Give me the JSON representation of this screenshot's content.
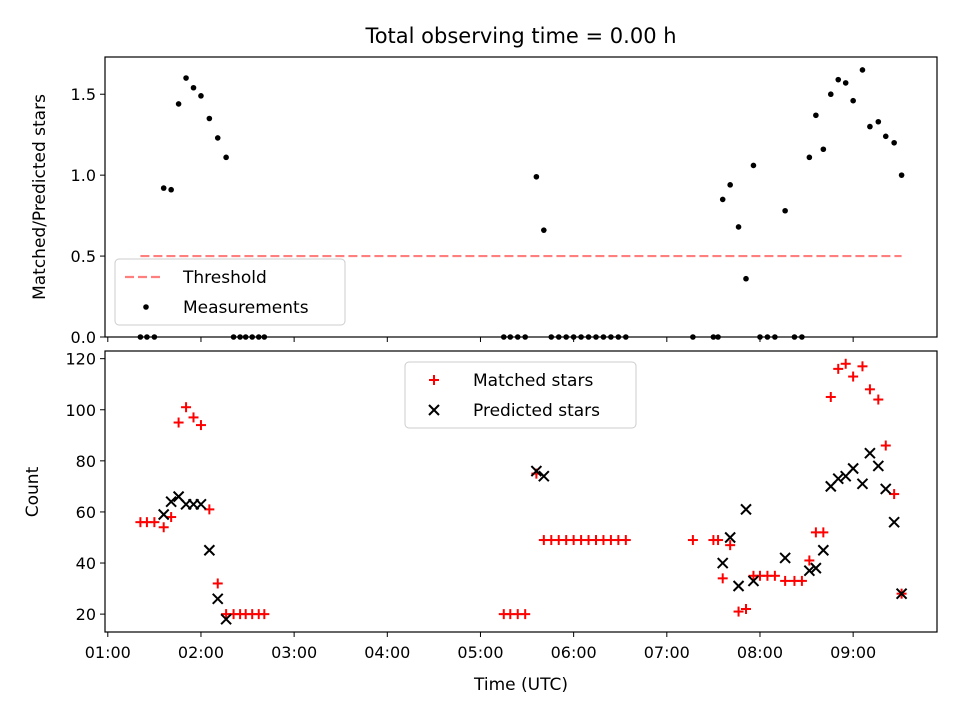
{
  "title": "Total observing time = 0.00 h",
  "colors": {
    "threshold": "#ff7f7f",
    "measurement": "#000000",
    "matched": "#ff0000",
    "predicted": "#000000"
  },
  "chart_data": [
    {
      "type": "scatter",
      "ylabel": "Matched/Predicted stars",
      "xlim": [
        0.97,
        9.9
      ],
      "ylim": [
        0,
        1.73
      ],
      "yticks": [
        0.0,
        0.5,
        1.0,
        1.5
      ],
      "ytick_labels": [
        "0.0",
        "0.5",
        "1.0",
        "1.5"
      ],
      "legend": {
        "position": "lower-left",
        "entries": [
          "Threshold",
          "Measurements"
        ]
      },
      "threshold": {
        "name": "Threshold",
        "y": 0.5,
        "x": [
          1.35,
          9.52
        ]
      },
      "series": [
        {
          "name": "Measurements",
          "points": [
            [
              1.35,
              0
            ],
            [
              1.42,
              0
            ],
            [
              1.5,
              0
            ],
            [
              1.6,
              0.92
            ],
            [
              1.68,
              0.91
            ],
            [
              1.76,
              1.44
            ],
            [
              1.84,
              1.6
            ],
            [
              1.92,
              1.54
            ],
            [
              2.0,
              1.49
            ],
            [
              2.09,
              1.35
            ],
            [
              2.18,
              1.23
            ],
            [
              2.27,
              1.11
            ],
            [
              2.35,
              0
            ],
            [
              2.42,
              0
            ],
            [
              2.48,
              0
            ],
            [
              2.55,
              0
            ],
            [
              2.62,
              0
            ],
            [
              2.68,
              0
            ],
            [
              5.25,
              0
            ],
            [
              5.32,
              0
            ],
            [
              5.4,
              0
            ],
            [
              5.48,
              0
            ],
            [
              5.6,
              0.99
            ],
            [
              5.68,
              0.66
            ],
            [
              5.76,
              0
            ],
            [
              5.84,
              0
            ],
            [
              5.92,
              0
            ],
            [
              6.0,
              0
            ],
            [
              6.08,
              0
            ],
            [
              6.16,
              0
            ],
            [
              6.24,
              0
            ],
            [
              6.32,
              0
            ],
            [
              6.4,
              0
            ],
            [
              6.48,
              0
            ],
            [
              6.56,
              0
            ],
            [
              7.28,
              0
            ],
            [
              7.5,
              0
            ],
            [
              7.55,
              0
            ],
            [
              7.6,
              0.85
            ],
            [
              7.68,
              0.94
            ],
            [
              7.77,
              0.68
            ],
            [
              7.85,
              0.36
            ],
            [
              7.93,
              1.06
            ],
            [
              8.0,
              0
            ],
            [
              8.08,
              0
            ],
            [
              8.16,
              0
            ],
            [
              8.27,
              0.78
            ],
            [
              8.37,
              0
            ],
            [
              8.45,
              0
            ],
            [
              8.53,
              1.11
            ],
            [
              8.6,
              1.37
            ],
            [
              8.68,
              1.16
            ],
            [
              8.76,
              1.5
            ],
            [
              8.84,
              1.59
            ],
            [
              8.92,
              1.57
            ],
            [
              9.0,
              1.46
            ],
            [
              9.1,
              1.65
            ],
            [
              9.18,
              1.3
            ],
            [
              9.27,
              1.33
            ],
            [
              9.35,
              1.24
            ],
            [
              9.44,
              1.2
            ],
            [
              9.52,
              1.0
            ]
          ]
        }
      ]
    },
    {
      "type": "scatter",
      "xlabel": "Time (UTC)",
      "ylabel": "Count",
      "xlim": [
        0.97,
        9.9
      ],
      "ylim": [
        13,
        123
      ],
      "xticks": [
        1,
        2,
        3,
        4,
        5,
        6,
        7,
        8,
        9
      ],
      "xtick_labels": [
        "01:00",
        "02:00",
        "03:00",
        "04:00",
        "05:00",
        "06:00",
        "07:00",
        "08:00",
        "09:00"
      ],
      "yticks": [
        20,
        40,
        60,
        80,
        100,
        120
      ],
      "ytick_labels": [
        "20",
        "40",
        "60",
        "80",
        "100",
        "120"
      ],
      "legend": {
        "position": "top-center",
        "entries": [
          "Matched stars",
          "Predicted stars"
        ]
      },
      "series": [
        {
          "name": "Matched stars",
          "points": [
            [
              1.35,
              56
            ],
            [
              1.42,
              56
            ],
            [
              1.5,
              56
            ],
            [
              1.6,
              54
            ],
            [
              1.68,
              58
            ],
            [
              1.76,
              95
            ],
            [
              1.84,
              101
            ],
            [
              1.92,
              97
            ],
            [
              2.0,
              94
            ],
            [
              2.09,
              61
            ],
            [
              2.18,
              32
            ],
            [
              2.27,
              20
            ],
            [
              2.35,
              20
            ],
            [
              2.42,
              20
            ],
            [
              2.48,
              20
            ],
            [
              2.55,
              20
            ],
            [
              2.62,
              20
            ],
            [
              2.68,
              20
            ],
            [
              5.25,
              20
            ],
            [
              5.32,
              20
            ],
            [
              5.4,
              20
            ],
            [
              5.48,
              20
            ],
            [
              5.6,
              75
            ],
            [
              5.68,
              49
            ],
            [
              5.76,
              49
            ],
            [
              5.84,
              49
            ],
            [
              5.92,
              49
            ],
            [
              6.0,
              49
            ],
            [
              6.08,
              49
            ],
            [
              6.16,
              49
            ],
            [
              6.24,
              49
            ],
            [
              6.32,
              49
            ],
            [
              6.4,
              49
            ],
            [
              6.48,
              49
            ],
            [
              6.56,
              49
            ],
            [
              7.28,
              49
            ],
            [
              7.5,
              49
            ],
            [
              7.55,
              49
            ],
            [
              7.6,
              34
            ],
            [
              7.68,
              47
            ],
            [
              7.77,
              21
            ],
            [
              7.85,
              22
            ],
            [
              7.93,
              35
            ],
            [
              8.0,
              35
            ],
            [
              8.08,
              35
            ],
            [
              8.16,
              35
            ],
            [
              8.27,
              33
            ],
            [
              8.37,
              33
            ],
            [
              8.45,
              33
            ],
            [
              8.53,
              41
            ],
            [
              8.6,
              52
            ],
            [
              8.68,
              52
            ],
            [
              8.76,
              105
            ],
            [
              8.84,
              116
            ],
            [
              8.92,
              118
            ],
            [
              9.0,
              113
            ],
            [
              9.1,
              117
            ],
            [
              9.18,
              108
            ],
            [
              9.27,
              104
            ],
            [
              9.35,
              86
            ],
            [
              9.44,
              67
            ],
            [
              9.52,
              28
            ]
          ]
        },
        {
          "name": "Predicted stars",
          "points": [
            [
              1.6,
              59
            ],
            [
              1.68,
              64
            ],
            [
              1.76,
              66
            ],
            [
              1.84,
              63
            ],
            [
              1.92,
              63
            ],
            [
              2.0,
              63
            ],
            [
              2.09,
              45
            ],
            [
              2.18,
              26
            ],
            [
              2.27,
              18
            ],
            [
              5.6,
              76
            ],
            [
              5.68,
              74
            ],
            [
              7.6,
              40
            ],
            [
              7.68,
              50
            ],
            [
              7.77,
              31
            ],
            [
              7.85,
              61
            ],
            [
              7.93,
              33
            ],
            [
              8.27,
              42
            ],
            [
              8.53,
              37
            ],
            [
              8.6,
              38
            ],
            [
              8.68,
              45
            ],
            [
              8.76,
              70
            ],
            [
              8.84,
              73
            ],
            [
              8.92,
              74
            ],
            [
              9.0,
              77
            ],
            [
              9.1,
              71
            ],
            [
              9.18,
              83
            ],
            [
              9.27,
              78
            ],
            [
              9.35,
              69
            ],
            [
              9.44,
              56
            ],
            [
              9.52,
              28
            ]
          ]
        }
      ]
    }
  ]
}
